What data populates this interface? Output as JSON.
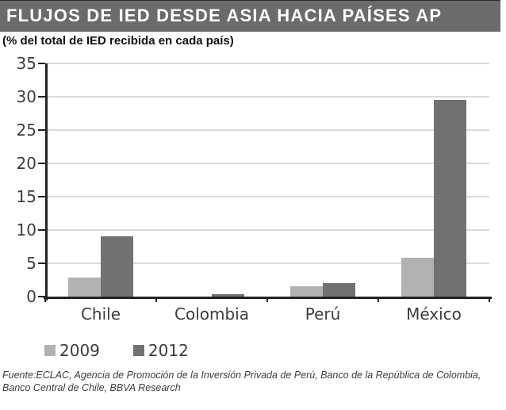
{
  "header": {
    "title": "FLUJOS DE IED DESDE ASIA HACIA PAÍSES AP"
  },
  "subtitle": "(% del total de IED recibida en cada país)",
  "chart_data": {
    "type": "bar",
    "title": "FLUJOS DE IED DESDE ASIA HACIA PAÍSES AP",
    "subtitle": "(% del total de IED recibida en cada país)",
    "categories": [
      "Chile",
      "Colombia",
      "Perú",
      "México"
    ],
    "series": [
      {
        "name": "2009",
        "color": "#b2b2b2",
        "values": [
          2.9,
          0.0,
          1.5,
          5.8
        ]
      },
      {
        "name": "2012",
        "color": "#717171",
        "values": [
          9.1,
          0.4,
          2.0,
          29.5
        ]
      }
    ],
    "xlabel": "",
    "ylabel": "",
    "ylim": [
      0,
      35
    ],
    "yticks": [
      0,
      5,
      10,
      15,
      20,
      25,
      30,
      35
    ],
    "grid": true,
    "legend_position": "bottom-left"
  },
  "footer": {
    "lines": [
      "Fuente:ECLAC, Agencia de Promoción de la Inversión Privada de Perú, Banco de la República de Colombia,",
      "Banco Central de Chile, BBVA Research"
    ]
  },
  "colors": {
    "header_bg": "#6b6b6b",
    "header_text": "#ffffff",
    "axis": "#222222",
    "grid": "#dadada",
    "tick_label": "#3d3d3d",
    "bar_2009": "#b2b2b2",
    "bar_2012": "#717171"
  }
}
